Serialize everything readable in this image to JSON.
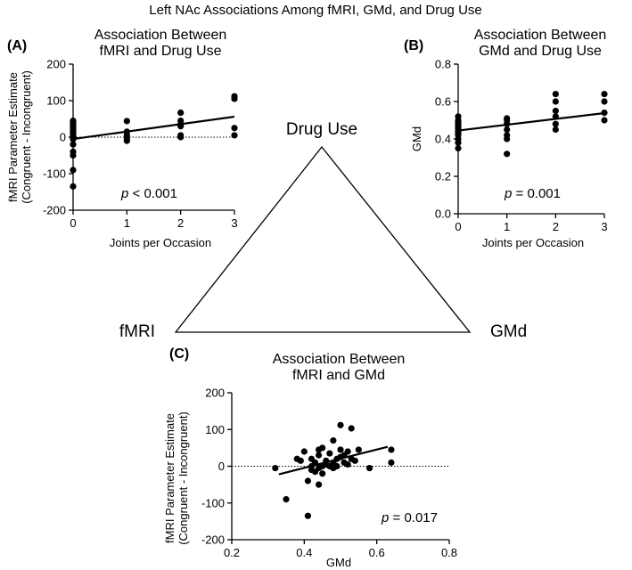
{
  "figure": {
    "title": "Left NAc Associations Among fMRI, GMd, and Drug Use",
    "triangle": {
      "top": "Drug Use",
      "left": "fMRI",
      "right": "GMd"
    }
  },
  "chart_data": [
    {
      "id": "A",
      "panel_label": "(A)",
      "type": "scatter",
      "title_lines": [
        "Association Between",
        "fMRI and Drug Use"
      ],
      "xlabel": "Joints per Occasion",
      "ylabel_lines": [
        "fMRI Parameter Estimate",
        "(Congruent - Incongruent)"
      ],
      "xlim": [
        0,
        3
      ],
      "ylim": [
        -200,
        200
      ],
      "xticks": [
        "0",
        "1",
        "2",
        "3"
      ],
      "yticks": [
        "-200",
        "-100",
        "0",
        "100",
        "200"
      ],
      "zero_line": true,
      "p_label": "p",
      "p_value": " < 0.001",
      "fit": {
        "x": [
          0,
          3
        ],
        "y": [
          -5,
          56
        ]
      },
      "points": {
        "x": [
          0,
          0,
          0,
          0,
          0,
          0,
          0,
          0,
          0,
          0,
          0,
          0,
          0,
          0,
          0,
          0,
          0,
          1,
          1,
          1,
          1,
          1,
          2,
          2,
          2,
          2,
          2,
          2,
          3,
          3,
          3,
          3
        ],
        "y": [
          45,
          40,
          35,
          30,
          25,
          20,
          15,
          10,
          5,
          0,
          -5,
          -20,
          -40,
          -50,
          -90,
          -135,
          -5,
          44,
          15,
          5,
          -5,
          -10,
          67,
          45,
          35,
          30,
          5,
          0,
          112,
          105,
          25,
          5
        ]
      }
    },
    {
      "id": "B",
      "panel_label": "(B)",
      "type": "scatter",
      "title_lines": [
        "Association Between",
        "GMd and Drug Use"
      ],
      "xlabel": "Joints per Occasion",
      "ylabel_lines": [
        "GMd"
      ],
      "xlim": [
        0,
        3
      ],
      "ylim": [
        0,
        0.8
      ],
      "xticks": [
        "0",
        "1",
        "2",
        "3"
      ],
      "yticks": [
        "0.0",
        "0.2",
        "0.4",
        "0.6",
        "0.8"
      ],
      "zero_line": false,
      "p_label": "p",
      "p_value": " = 0.001",
      "fit": {
        "x": [
          0,
          3
        ],
        "y": [
          0.445,
          0.538
        ]
      },
      "points": {
        "x": [
          0,
          0,
          0,
          0,
          0,
          0,
          0,
          0,
          0,
          0,
          0,
          0,
          0,
          1,
          1,
          1,
          1,
          1,
          1,
          1,
          2,
          2,
          2,
          2,
          2,
          2,
          3,
          3,
          3,
          3
        ],
        "y": [
          0.52,
          0.5,
          0.49,
          0.48,
          0.47,
          0.46,
          0.45,
          0.44,
          0.43,
          0.42,
          0.4,
          0.38,
          0.35,
          0.51,
          0.5,
          0.48,
          0.45,
          0.42,
          0.4,
          0.32,
          0.64,
          0.6,
          0.55,
          0.52,
          0.48,
          0.45,
          0.64,
          0.6,
          0.54,
          0.5
        ]
      }
    },
    {
      "id": "C",
      "panel_label": "(C)",
      "type": "scatter",
      "title_lines": [
        "Association Between",
        "fMRI and GMd"
      ],
      "xlabel": "GMd",
      "ylabel_lines": [
        "fMRI Parameter Estimate",
        "(Congruent - Incongruent)"
      ],
      "xlim": [
        0.2,
        0.8
      ],
      "ylim": [
        -200,
        200
      ],
      "xticks": [
        "0.2",
        "0.4",
        "0.6",
        "0.8"
      ],
      "yticks": [
        "-200",
        "-100",
        "0",
        "100",
        "200"
      ],
      "zero_line": true,
      "p_label": "p",
      "p_value": " = 0.017",
      "fit": {
        "x": [
          0.33,
          0.63
        ],
        "y": [
          -22,
          53
        ]
      },
      "points": {
        "x": [
          0.32,
          0.35,
          0.38,
          0.39,
          0.4,
          0.41,
          0.41,
          0.42,
          0.42,
          0.43,
          0.43,
          0.44,
          0.44,
          0.44,
          0.45,
          0.45,
          0.45,
          0.46,
          0.46,
          0.47,
          0.47,
          0.48,
          0.48,
          0.48,
          0.49,
          0.49,
          0.5,
          0.5,
          0.5,
          0.51,
          0.51,
          0.52,
          0.52,
          0.53,
          0.53,
          0.54,
          0.55,
          0.58,
          0.64,
          0.64,
          0.42,
          0.44
        ],
        "y": [
          -5,
          -90,
          20,
          15,
          40,
          -40,
          -135,
          20,
          0,
          10,
          -15,
          45,
          30,
          -5,
          0,
          -20,
          50,
          15,
          5,
          0,
          35,
          70,
          10,
          -5,
          20,
          0,
          112,
          45,
          25,
          30,
          10,
          5,
          40,
          20,
          103,
          15,
          45,
          -5,
          45,
          10,
          -10,
          -50
        ]
      }
    }
  ]
}
